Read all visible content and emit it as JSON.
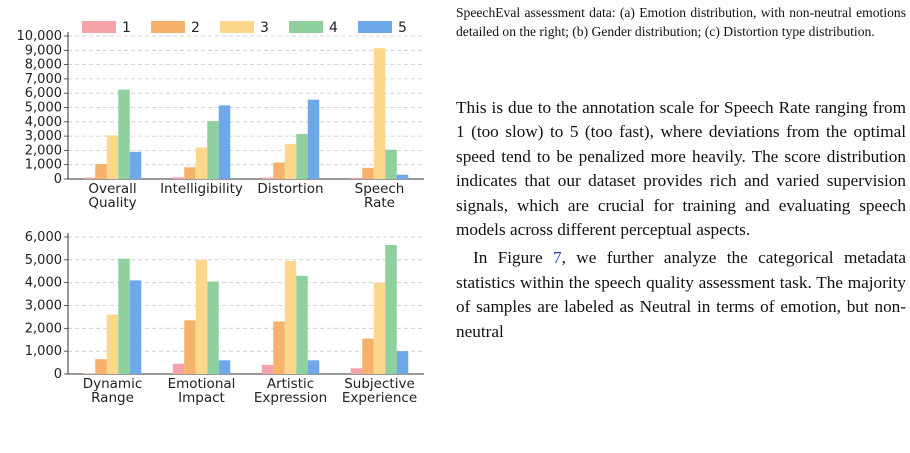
{
  "legend": [
    "1",
    "2",
    "3",
    "4",
    "5"
  ],
  "colors": [
    "#f4a3a8",
    "#f6b26b",
    "#fdd78c",
    "#8fd19e",
    "#6fa8e8"
  ],
  "caption": "SpeechEval assessment data: (a) Emotion distribution, with non-neutral emotions detailed on the right; (b) Gender distribution; (c) Distortion type distribution.",
  "paragraph1": "This is due to the annotation scale for Speech Rate ranging from 1 (too slow) to 5 (too fast), where deviations from the optimal speed tend to be penalized more heavily. The score distribution indicates that our dataset provides rich and varied supervision signals, which are crucial for training and evaluating speech models across different perceptual aspects.",
  "paragraph2": {
    "before": "In Figure ",
    "ref": "7",
    "after": ", we further analyze the categorical metadata statistics within the speech quality assessment task. The majority of samples are labeled as Neutral in terms of emotion, but non-neutral"
  },
  "chart_data": [
    {
      "type": "bar",
      "categories": [
        "Overall\nQuality",
        "Intelligibility",
        "Distortion",
        "Speech\nRate"
      ],
      "series": [
        {
          "name": "1",
          "values": [
            100,
            120,
            100,
            80
          ]
        },
        {
          "name": "2",
          "values": [
            1050,
            820,
            1150,
            780
          ]
        },
        {
          "name": "3",
          "values": [
            3050,
            2200,
            2450,
            9150
          ]
        },
        {
          "name": "4",
          "values": [
            6250,
            4050,
            3150,
            2050
          ]
        },
        {
          "name": "5",
          "values": [
            1900,
            5150,
            5550,
            300
          ]
        }
      ],
      "ylim": [
        0,
        10000
      ],
      "yticks": [
        "0",
        "1,000",
        "2,000",
        "3,000",
        "4,000",
        "5,000",
        "6,000",
        "7,000",
        "8,000",
        "9,000",
        "10,000"
      ],
      "grid": true,
      "legend_position": "top"
    },
    {
      "type": "bar",
      "categories": [
        "Dynamic\nRange",
        "Emotional\nImpact",
        "Artistic\nExpression",
        "Subjective\nExperience"
      ],
      "series": [
        {
          "name": "1",
          "values": [
            20,
            450,
            400,
            250
          ]
        },
        {
          "name": "2",
          "values": [
            650,
            2350,
            2300,
            1550
          ]
        },
        {
          "name": "3",
          "values": [
            2600,
            5000,
            4950,
            4000
          ]
        },
        {
          "name": "4",
          "values": [
            5050,
            4050,
            4300,
            5650
          ]
        },
        {
          "name": "5",
          "values": [
            4100,
            600,
            600,
            1000
          ]
        }
      ],
      "ylim": [
        0,
        6000
      ],
      "yticks": [
        "0",
        "1,000",
        "2,000",
        "3,000",
        "4,000",
        "5,000",
        "6,000"
      ],
      "grid": true
    }
  ]
}
